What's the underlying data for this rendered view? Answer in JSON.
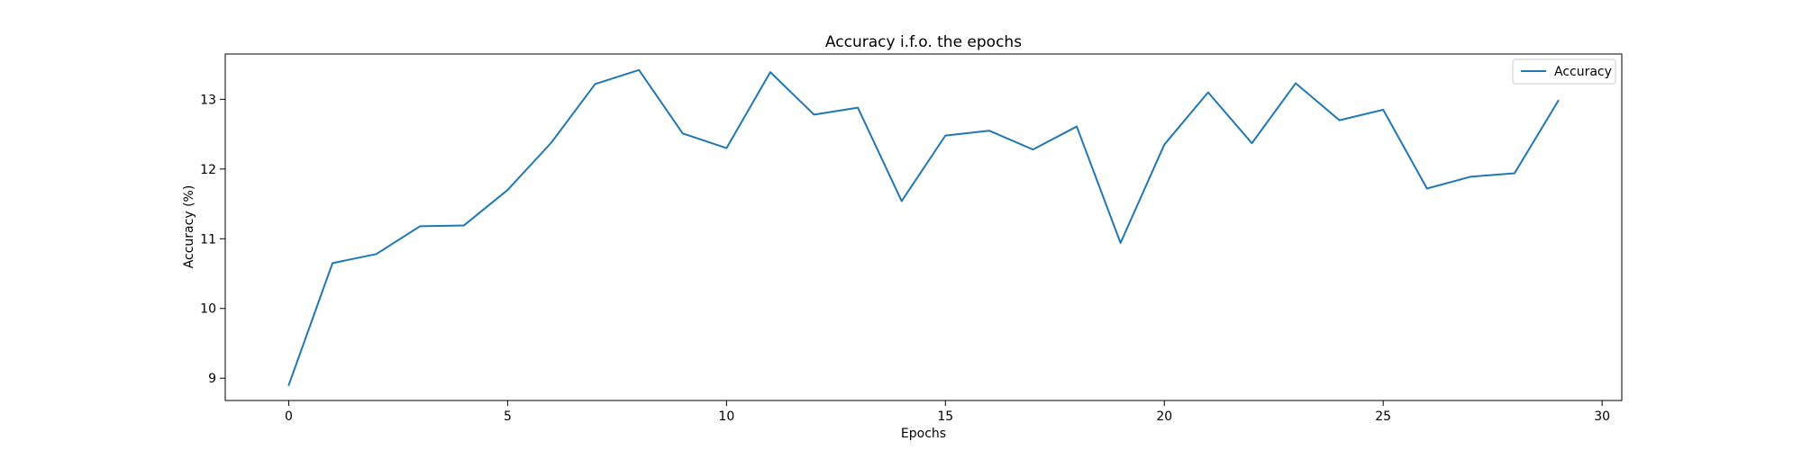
{
  "chart_data": {
    "type": "line",
    "title": "Accuracy i.f.o. the epochs",
    "xlabel": "Epochs",
    "ylabel": "Accuracy (%)",
    "xlim": [
      -1.45,
      30.45
    ],
    "ylim": [
      8.68,
      13.65
    ],
    "xticks": [
      0,
      5,
      10,
      15,
      20,
      25,
      30
    ],
    "yticks": [
      9,
      10,
      11,
      12,
      13
    ],
    "grid": false,
    "legend_position": "top-right",
    "series": [
      {
        "name": "Accuracy",
        "color": "#1f77b4",
        "x": [
          0,
          1,
          2,
          3,
          4,
          5,
          6,
          7,
          8,
          9,
          10,
          11,
          12,
          13,
          14,
          15,
          16,
          17,
          18,
          19,
          20,
          21,
          22,
          23,
          24,
          25,
          26,
          27,
          28,
          29
        ],
        "y": [
          8.9,
          10.65,
          10.78,
          11.18,
          11.19,
          11.7,
          12.38,
          13.22,
          13.42,
          12.51,
          12.3,
          13.39,
          12.78,
          12.88,
          11.54,
          12.48,
          12.55,
          12.28,
          12.61,
          10.94,
          12.35,
          13.1,
          12.37,
          13.23,
          12.7,
          12.85,
          11.72,
          11.89,
          11.94,
          12.98
        ]
      }
    ]
  }
}
